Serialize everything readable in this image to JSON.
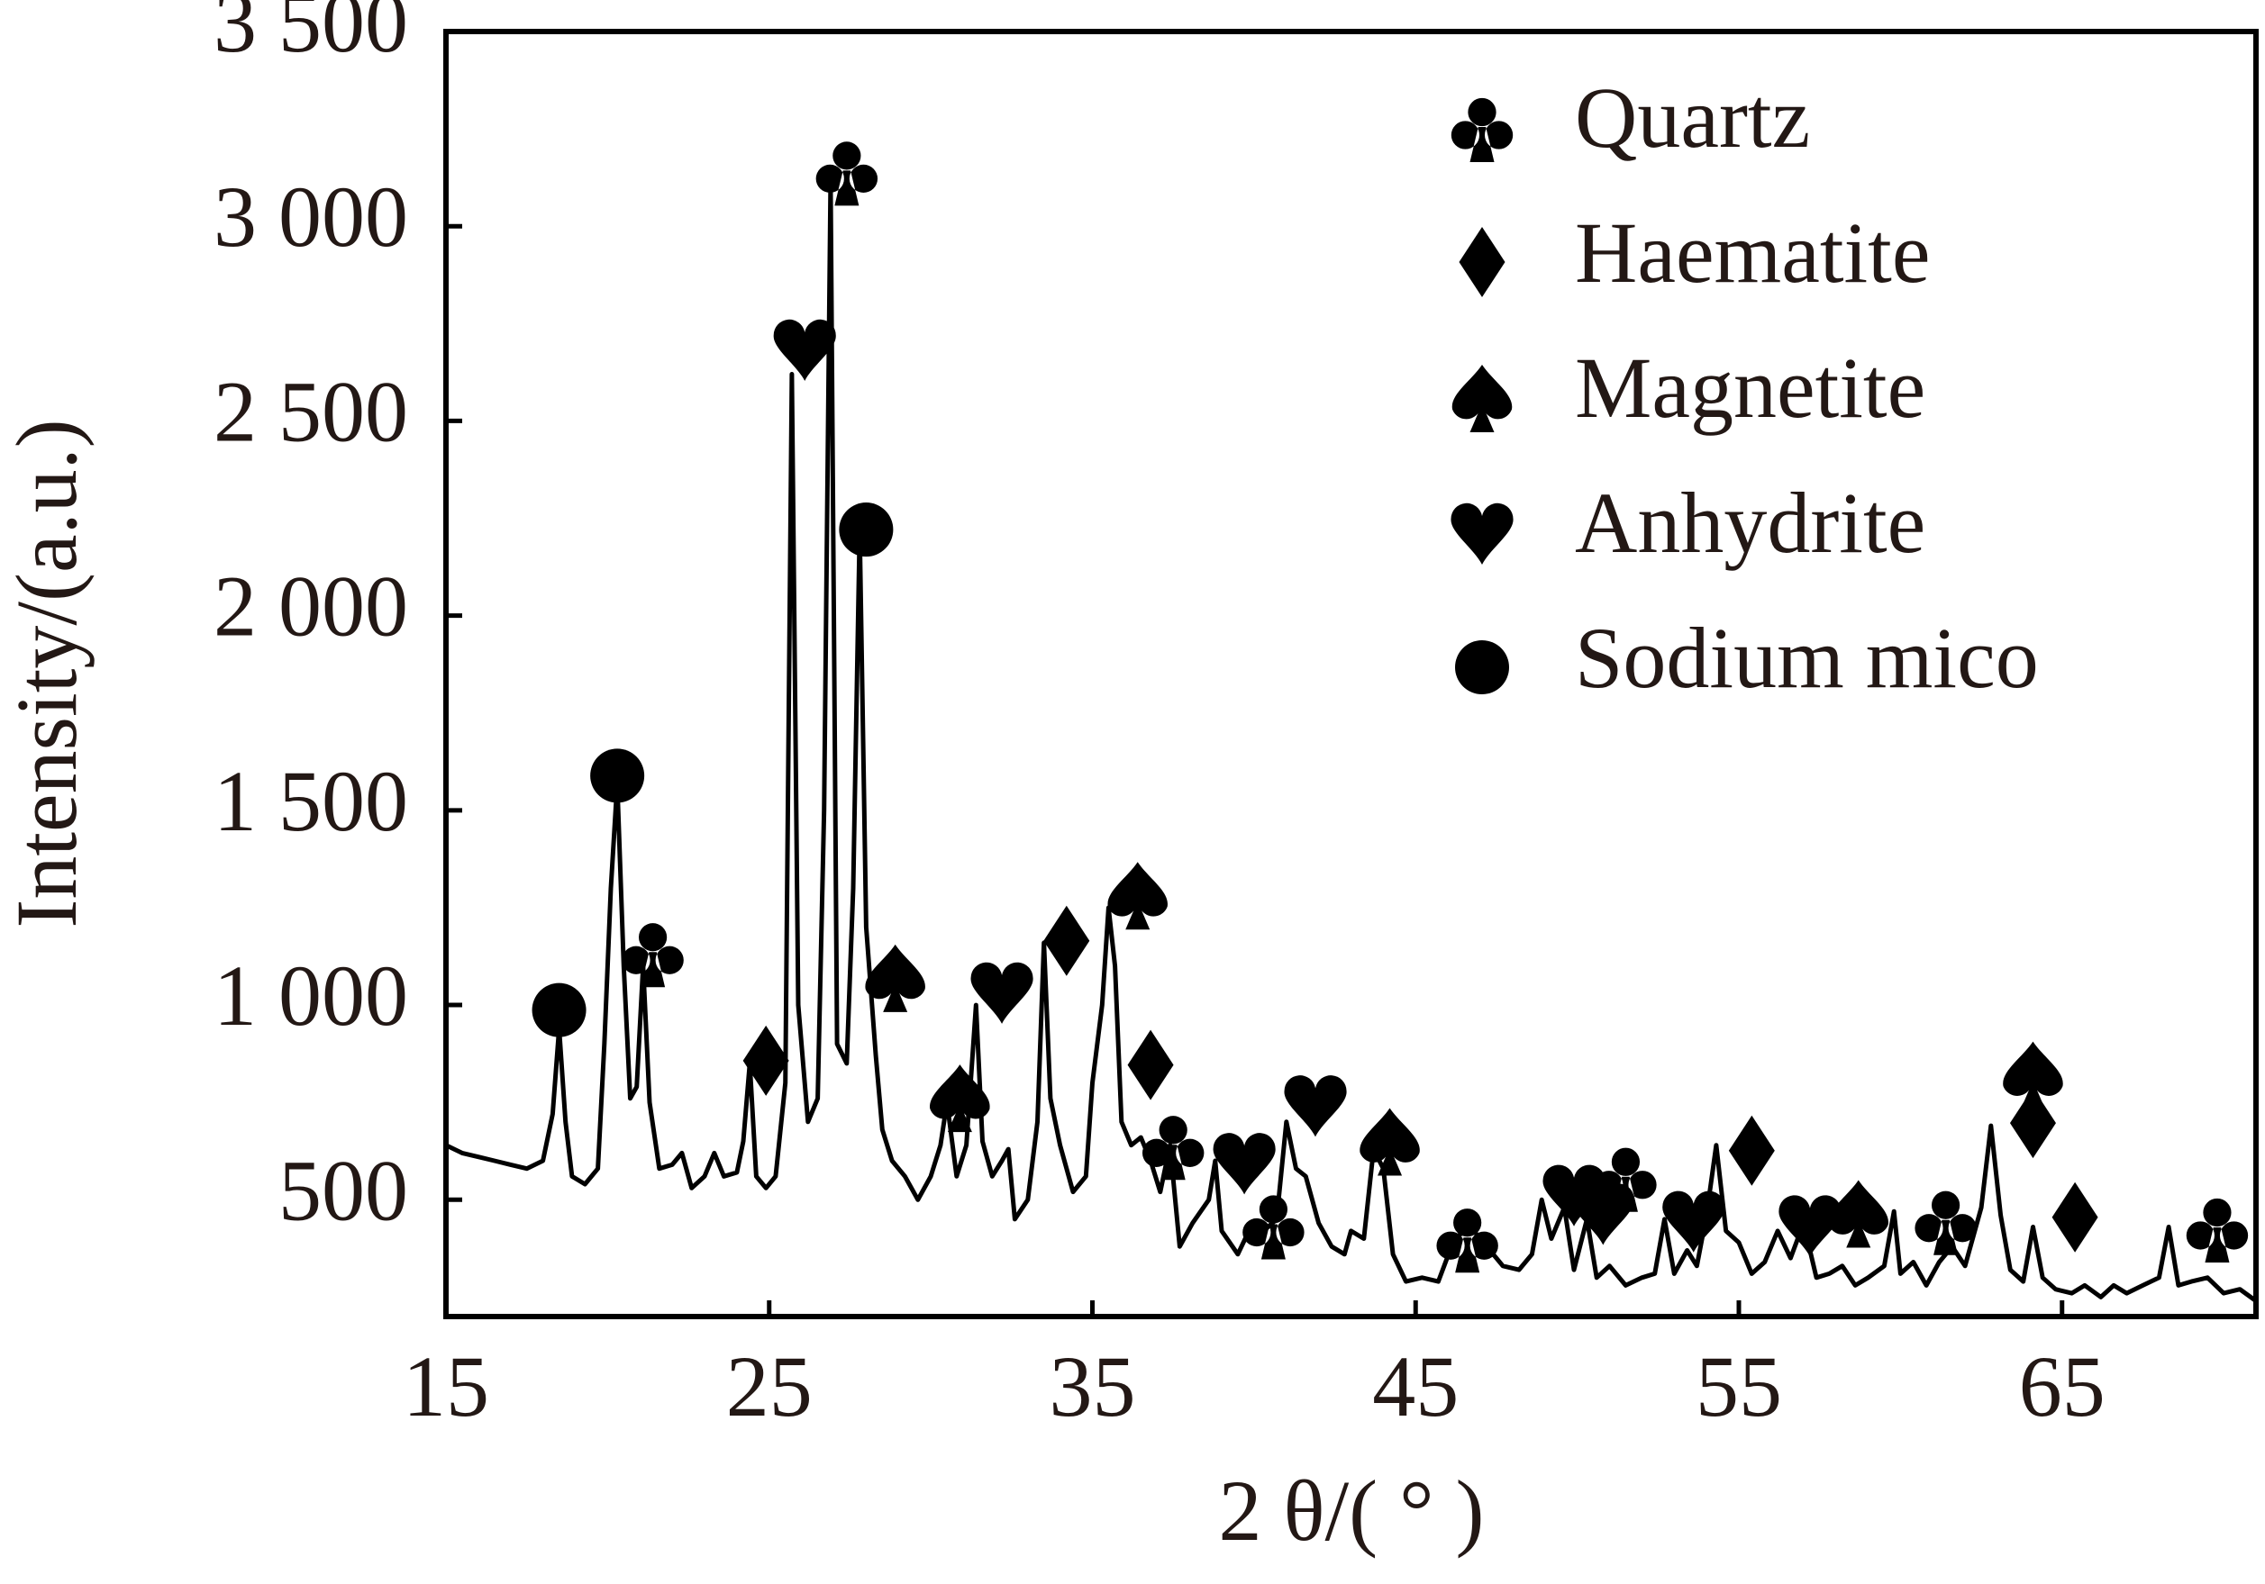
{
  "chart_data": {
    "type": "line",
    "xlabel": "2 θ/( ° )",
    "ylabel": "Intensity/(a.u.)",
    "xlim": [
      15,
      71
    ],
    "ylim": [
      200,
      3500
    ],
    "xticks": [
      15,
      25,
      35,
      45,
      55,
      65
    ],
    "yticks": [
      500,
      {
        "value": 1000,
        "label": "1 000"
      },
      {
        "value": 1500,
        "label": "1 500"
      },
      {
        "value": 2000,
        "label": "2 000"
      },
      {
        "value": 2500,
        "label": "2 500"
      },
      {
        "value": 3000,
        "label": "3 000"
      },
      {
        "value": 3500,
        "label": "3 500"
      }
    ],
    "x": [
      15,
      15.5,
      16,
      16.5,
      17,
      17.5,
      18,
      18.3,
      18.5,
      18.7,
      18.9,
      19.3,
      19.7,
      19.9,
      20.1,
      20.3,
      20.5,
      20.7,
      20.9,
      21.1,
      21.3,
      21.6,
      22,
      22.3,
      22.6,
      23,
      23.3,
      23.6,
      24,
      24.2,
      24.4,
      24.6,
      24.9,
      25.2,
      25.5,
      25.7,
      25.9,
      26.2,
      26.5,
      26.7,
      26.9,
      27.1,
      27.4,
      27.6,
      27.8,
      28.0,
      28.3,
      28.5,
      28.8,
      29.2,
      29.6,
      30,
      30.3,
      30.5,
      30.8,
      31.1,
      31.4,
      31.6,
      31.9,
      32.2,
      32.4,
      32.6,
      33,
      33.3,
      33.5,
      33.7,
      34,
      34.4,
      34.8,
      35,
      35.3,
      35.5,
      35.7,
      35.9,
      36.2,
      36.5,
      36.8,
      37.1,
      37.4,
      37.7,
      38.1,
      38.6,
      38.8,
      39,
      39.5,
      39.9,
      40.3,
      40.7,
      41,
      41.3,
      41.6,
      42,
      42.4,
      42.8,
      43,
      43.4,
      43.7,
      44,
      44.3,
      44.7,
      45.2,
      45.7,
      46.2,
      46.7,
      47.2,
      47.7,
      48.2,
      48.6,
      48.9,
      49.2,
      49.6,
      49.9,
      50.3,
      50.6,
      51,
      51.5,
      52,
      52.4,
      52.7,
      53,
      53.4,
      53.7,
      54,
      54.3,
      54.6,
      55,
      55.4,
      55.8,
      56.2,
      56.6,
      57,
      57.4,
      57.8,
      58.2,
      58.6,
      59,
      59.5,
      59.8,
      60,
      60.4,
      60.8,
      61.2,
      61.6,
      62,
      62.5,
      62.8,
      63.1,
      63.4,
      63.8,
      64.1,
      64.4,
      64.8,
      65.3,
      65.7,
      66.2,
      66.6,
      67,
      67.5,
      68,
      68.3,
      68.6,
      69,
      69.5,
      70,
      70.5,
      71
    ],
    "series": [
      {
        "color": "#000000",
        "values": [
          640,
          620,
          610,
          600,
          590,
          580,
          600,
          720,
          940,
          700,
          560,
          540,
          580,
          900,
          1300,
          1570,
          1100,
          760,
          790,
          1100,
          750,
          580,
          590,
          620,
          530,
          560,
          620,
          560,
          570,
          650,
          850,
          560,
          530,
          560,
          800,
          2620,
          1000,
          700,
          760,
          1500,
          3120,
          900,
          850,
          1300,
          2220,
          1200,
          870,
          680,
          600,
          560,
          500,
          560,
          640,
          750,
          560,
          640,
          1000,
          650,
          560,
          600,
          630,
          450,
          500,
          700,
          1160,
          760,
          640,
          520,
          560,
          800,
          1000,
          1250,
          1100,
          700,
          640,
          660,
          600,
          520,
          640,
          380,
          440,
          500,
          600,
          420,
          360,
          430,
          420,
          450,
          700,
          580,
          560,
          440,
          380,
          360,
          420,
          400,
          630,
          580,
          360,
          290,
          300,
          290,
          400,
          430,
          380,
          330,
          320,
          360,
          500,
          400,
          480,
          320,
          450,
          300,
          330,
          280,
          300,
          310,
          450,
          310,
          370,
          330,
          460,
          640,
          420,
          390,
          310,
          340,
          420,
          350,
          440,
          300,
          310,
          330,
          280,
          300,
          330,
          470,
          310,
          340,
          280,
          340,
          380,
          330,
          480,
          690,
          460,
          320,
          290,
          430,
          300,
          270,
          260,
          280,
          250,
          280,
          260,
          280,
          300,
          430,
          280,
          290,
          300,
          260,
          270,
          240
        ]
      }
    ],
    "phases": [
      {
        "name": "Quartz",
        "symbol": "club",
        "x": [
          27.4,
          21.4,
          37.5,
          40.6,
          46.6,
          51.5,
          61.4,
          69.8
        ],
        "y": [
          3143,
          1136,
          641,
          437,
          403,
          559,
          448,
          429
        ]
      },
      {
        "name": "Haematite",
        "symbol": "diamond",
        "x": [
          24.9,
          34.2,
          36.8,
          55.4,
          64.1,
          65.4
        ],
        "y": [
          857,
          1165,
          846,
          626,
          697,
          455
        ]
      },
      {
        "name": "Magnetite",
        "symbol": "spade",
        "x": [
          28.9,
          30.9,
          36.4,
          44.2,
          58.7,
          64.1
        ],
        "y": [
          1072,
          764,
          1284,
          652,
          467,
          823
        ]
      },
      {
        "name": "Anhydrite",
        "symbol": "heart",
        "x": [
          26.1,
          32.2,
          39.7,
          41.9,
          49.9,
          50.8,
          53.6,
          57.2
        ],
        "y": [
          2686,
          1035,
          597,
          745,
          515,
          467,
          448,
          437
        ]
      },
      {
        "name": "Sodium mico",
        "symbol": "circle",
        "x": [
          18.5,
          20.3,
          28.0
        ],
        "y": [
          987,
          1589,
          2221
        ]
      }
    ]
  }
}
